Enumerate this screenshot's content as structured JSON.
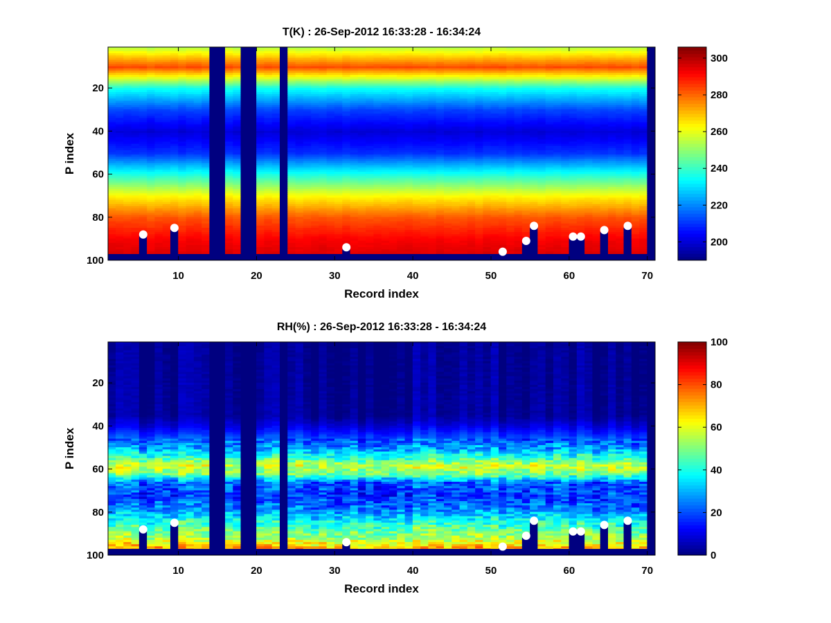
{
  "chart_data": [
    {
      "type": "heatmap",
      "title": "T(K) : 26-Sep-2012 16:33:28 - 16:34:24",
      "xlabel": "Record index",
      "ylabel": "P index",
      "xlim": [
        1,
        71
      ],
      "ylim": [
        1,
        100
      ],
      "y_reversed": true,
      "xticks": [
        10,
        20,
        30,
        40,
        50,
        60,
        70
      ],
      "yticks": [
        20,
        40,
        60,
        80,
        100
      ],
      "colorbar": {
        "range": [
          190,
          306
        ],
        "ticks": [
          200,
          220,
          240,
          260,
          280,
          300
        ]
      },
      "profile": {
        "p": [
          1,
          5,
          10,
          20,
          30,
          40,
          50,
          60,
          70,
          80,
          90,
          98
        ],
        "values": [
          255,
          268,
          283,
          235,
          212,
          200,
          210,
          237,
          263,
          282,
          292,
          296
        ]
      },
      "variability": 3,
      "full_missing_columns": [
        14,
        15,
        18,
        19,
        23,
        70
      ],
      "surface_p": [
        88,
        85,
        94,
        96,
        91,
        84,
        89,
        89,
        86,
        84
      ],
      "markers_x": [
        5,
        9,
        31,
        51,
        54,
        55,
        60,
        61,
        64,
        67
      ]
    },
    {
      "type": "heatmap",
      "title": "RH(%) : 26-Sep-2012 16:33:28 - 16:34:24",
      "xlabel": "Record index",
      "ylabel": "P index",
      "xlim": [
        1,
        71
      ],
      "ylim": [
        1,
        100
      ],
      "y_reversed": true,
      "xticks": [
        10,
        20,
        30,
        40,
        50,
        60,
        70
      ],
      "yticks": [
        20,
        40,
        60,
        80,
        100
      ],
      "colorbar": {
        "range": [
          0,
          100
        ],
        "ticks": [
          0,
          20,
          40,
          60,
          80,
          100
        ]
      },
      "profile": {
        "p": [
          1,
          35,
          40,
          45,
          50,
          55,
          58,
          62,
          66,
          72,
          78,
          84,
          88,
          92,
          96,
          98
        ],
        "values": [
          2,
          3,
          10,
          20,
          28,
          45,
          58,
          50,
          22,
          18,
          25,
          40,
          48,
          55,
          70,
          75
        ]
      },
      "variability": 14,
      "full_missing_columns": [
        14,
        15,
        18,
        19,
        23,
        70
      ],
      "surface_p": [
        88,
        85,
        94,
        96,
        91,
        84,
        89,
        89,
        86,
        84
      ],
      "markers_x": [
        5,
        9,
        31,
        51,
        54,
        55,
        60,
        61,
        64,
        67
      ]
    }
  ]
}
